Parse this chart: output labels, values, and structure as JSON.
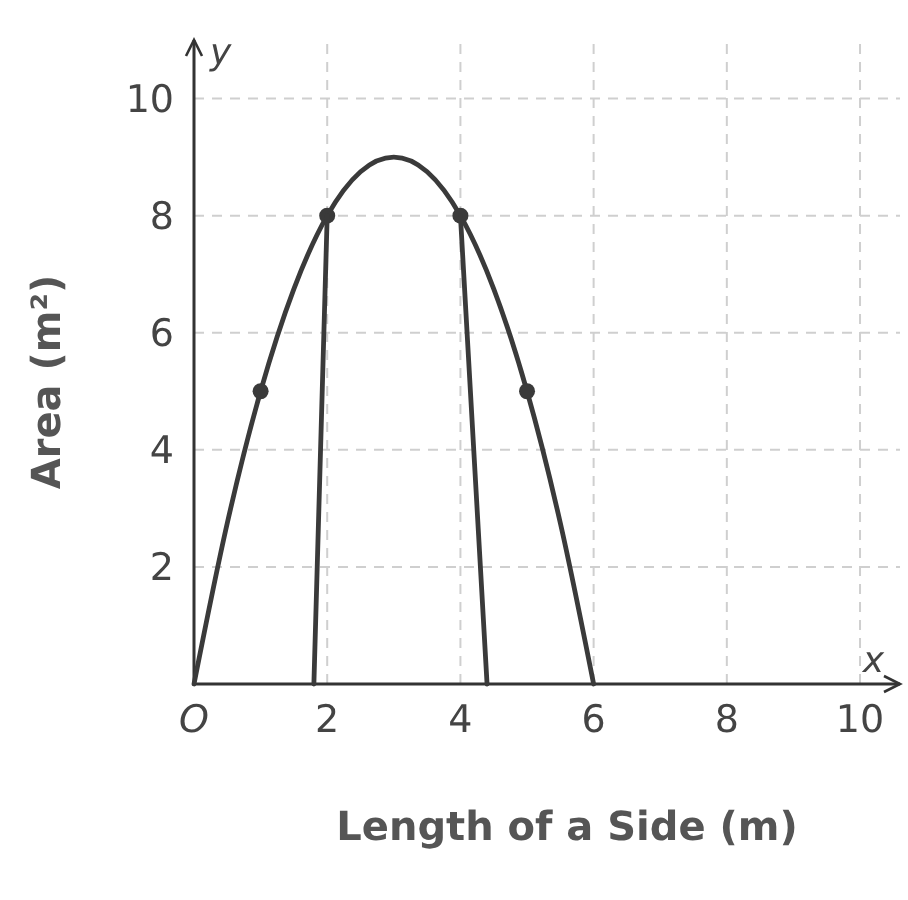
{
  "chart_data": {
    "type": "line",
    "xlabel": "Length of a Side (m)",
    "ylabel": "Area (m²)",
    "annotations": [
      "y",
      "x"
    ],
    "xlim": [
      0,
      10.6
    ],
    "ylim": [
      0,
      11
    ],
    "xticks": [
      {
        "value": 0,
        "label": "O"
      },
      2,
      4,
      6,
      8,
      10
    ],
    "yticks": [
      2,
      4,
      6,
      8,
      10
    ],
    "grid": true,
    "series": [
      {
        "color": "#3a3a3a",
        "x": [
          0,
          0.5,
          1,
          1.5,
          2,
          2.5,
          3,
          3.5,
          4,
          4.5,
          5,
          5.5,
          6
        ],
        "values": [
          0,
          2.75,
          5,
          6.75,
          8,
          8.75,
          9,
          8.75,
          8,
          6.75,
          5,
          2.75,
          0
        ]
      },
      {
        "type": "scatter",
        "color": "#3a3a3a",
        "marker": "circle",
        "x": [
          1,
          2,
          4,
          5
        ],
        "values": [
          5,
          8,
          8,
          5
        ]
      },
      {
        "color": "#3a3a3a",
        "x": [
          2,
          1.8
        ],
        "values": [
          8,
          0
        ]
      },
      {
        "color": "#3a3a3a",
        "x": [
          4,
          4.4
        ],
        "values": [
          8,
          0
        ]
      }
    ]
  }
}
